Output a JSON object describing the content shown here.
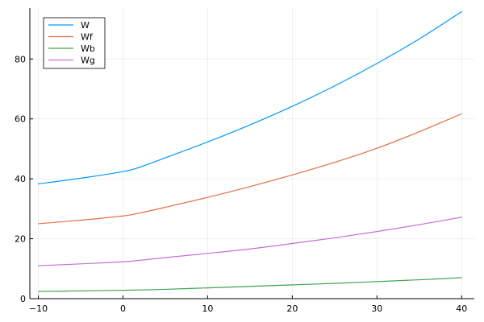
{
  "chart_data": {
    "type": "line",
    "title": "",
    "xlabel": "",
    "ylabel": "",
    "xlim": [
      -11,
      41.5
    ],
    "ylim": [
      0,
      97
    ],
    "xticks": [
      -10,
      0,
      10,
      20,
      30,
      40
    ],
    "yticks": [
      0,
      20,
      40,
      60,
      80
    ],
    "xtick_labels": [
      "−10",
      "0",
      "10",
      "20",
      "30",
      "40"
    ],
    "ytick_labels": [
      "0",
      "20",
      "40",
      "60",
      "80"
    ],
    "grid": true,
    "legend_position": "top-left",
    "x": [
      -10,
      -5,
      0,
      2,
      5,
      10,
      15,
      20,
      25,
      30,
      35,
      40
    ],
    "series": [
      {
        "name": "W",
        "color": "#009AFA",
        "values": [
          38.3,
          40.2,
          42.4,
          43.9,
          47.0,
          52.3,
          58.0,
          64.2,
          71.0,
          78.5,
          86.7,
          95.8
        ]
      },
      {
        "name": "Wf",
        "color": "#E26F46",
        "values": [
          25.0,
          26.2,
          27.6,
          28.6,
          30.5,
          33.8,
          37.4,
          41.3,
          45.5,
          50.2,
          55.7,
          61.7
        ]
      },
      {
        "name": "Wb",
        "color": "#3DA44D",
        "values": [
          2.4,
          2.6,
          2.8,
          2.9,
          3.1,
          3.6,
          4.1,
          4.6,
          5.1,
          5.7,
          6.3,
          7.0
        ]
      },
      {
        "name": "Wg",
        "color": "#C271D2",
        "values": [
          11.0,
          11.6,
          12.3,
          12.8,
          13.7,
          15.1,
          16.6,
          18.4,
          20.3,
          22.4,
          24.7,
          27.2
        ]
      }
    ]
  }
}
